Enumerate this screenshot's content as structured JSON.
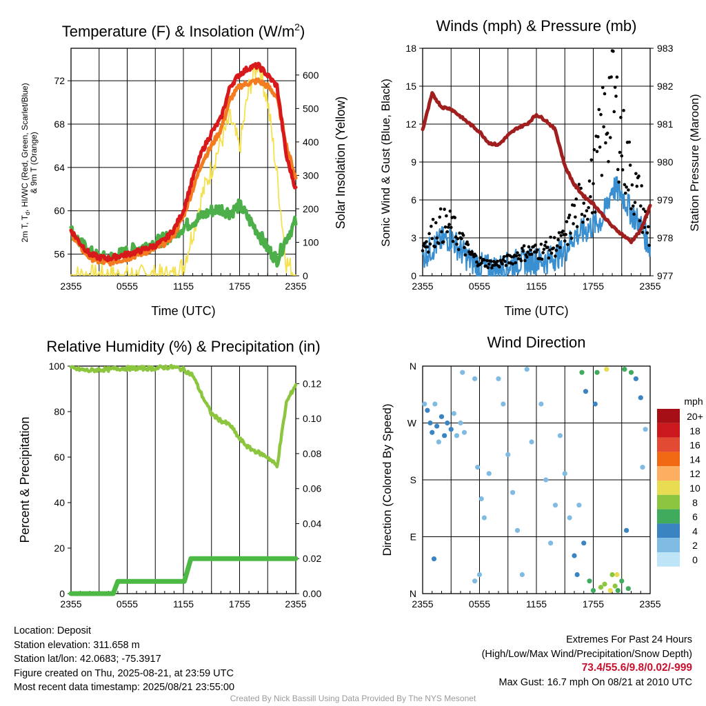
{
  "panels": {
    "temperature": {
      "title": "Temperature (F) & Insolation (W/m",
      "title_sup": "2",
      "title_end": ")",
      "ylabel_left_line1": "2m T, T",
      "ylabel_left_sub": "d",
      "ylabel_left_line1b": ", HI/WC (Red, Green, Scarlet/Blue)",
      "ylabel_left_line2": "& 9m T (Orange)",
      "ylabel_right": "Solar Insolation (Yellow)",
      "xlabel": "Time (UTC)"
    },
    "winds": {
      "title": "Winds (mph) & Pressure (mb)",
      "ylabel_left": "Sonic Wind & Gust (Blue, Black)",
      "ylabel_right": "Station Pressure (Maroon)",
      "xlabel": "Time (UTC)"
    },
    "humidity": {
      "title": "Relative Humidity (%) & Precipitation (in)",
      "ylabel_left": "Percent & Precipitation"
    },
    "direction": {
      "title": "Wind Direction",
      "ylabel_left": "Direction (Colored By Speed)",
      "legend_title": "mph",
      "legend_labels": [
        "20+",
        "18",
        "16",
        "14",
        "12",
        "10",
        "8",
        "6",
        "4",
        "2",
        "0"
      ],
      "legend_colors": [
        "#a50f15",
        "#cb181d",
        "#e34a33",
        "#f16913",
        "#fdae61",
        "#e8dd52",
        "#8cc63f",
        "#41ab5d",
        "#3a84c1",
        "#7fbbe3",
        "#bde4f7"
      ]
    }
  },
  "chart_data": [
    {
      "type": "line",
      "title": "Temperature (F) & Insolation (W/m2)",
      "xlabel": "Time (UTC)",
      "ylabel": "2m T, Td, HI/WC (Red, Green, Scarlet/Blue) & 9m T (Orange)",
      "y2label": "Solar Insolation (Yellow)",
      "x": [
        "2355",
        "0555",
        "1155",
        "1755",
        "2355"
      ],
      "x_hours": [
        0,
        6,
        12,
        18,
        24
      ],
      "ylim": [
        54,
        75
      ],
      "yticks": [
        56,
        60,
        64,
        68,
        72
      ],
      "y2lim": [
        0,
        680
      ],
      "y2ticks": [
        0,
        100,
        200,
        300,
        400,
        500,
        600
      ],
      "grid": true,
      "series": [
        {
          "name": "2m T",
          "color": "#d7191c",
          "axis": "left",
          "x": [
            0,
            1,
            2,
            3,
            4,
            5,
            6,
            7,
            8,
            9,
            10,
            11,
            12,
            13,
            14,
            15,
            16,
            17,
            18,
            19,
            20,
            21,
            22,
            23,
            24
          ],
          "values": [
            58.2,
            57.0,
            56.0,
            55.7,
            55.6,
            55.8,
            56.0,
            56.2,
            56.5,
            56.8,
            57.3,
            58.3,
            60.0,
            63.0,
            65.5,
            67.2,
            68.5,
            71.5,
            72.6,
            73.2,
            73.4,
            72.5,
            71.5,
            65.0,
            62.0
          ]
        },
        {
          "name": "9m T",
          "color": "#f47c20",
          "axis": "left",
          "x": [
            0,
            1,
            2,
            3,
            4,
            5,
            6,
            7,
            8,
            9,
            10,
            11,
            12,
            13,
            14,
            15,
            16,
            17,
            18,
            19,
            20,
            21,
            22,
            23,
            24
          ],
          "values": [
            58.0,
            56.6,
            55.7,
            55.3,
            55.2,
            55.4,
            55.6,
            55.9,
            56.2,
            56.5,
            57.0,
            57.8,
            59.5,
            62.0,
            64.5,
            66.0,
            67.5,
            70.3,
            71.5,
            71.8,
            72.0,
            71.5,
            70.5,
            66.0,
            63.0
          ]
        },
        {
          "name": "Td",
          "color": "#4daf4a",
          "axis": "left",
          "x": [
            0,
            1,
            2,
            3,
            4,
            5,
            6,
            7,
            8,
            9,
            10,
            11,
            12,
            13,
            14,
            15,
            16,
            17,
            18,
            19,
            20,
            21,
            22,
            23,
            24
          ],
          "values": [
            58.2,
            57.0,
            56.2,
            55.7,
            55.6,
            55.9,
            56.2,
            56.5,
            56.8,
            57.1,
            57.4,
            57.9,
            58.5,
            59.0,
            59.5,
            60.0,
            60.2,
            59.8,
            60.5,
            59.2,
            58.0,
            56.5,
            55.5,
            57.5,
            59.0
          ]
        },
        {
          "name": "Solar Insolation",
          "color": "#f5e04d",
          "axis": "right",
          "x": [
            0,
            4,
            8,
            9,
            10,
            11,
            12,
            13,
            14,
            15,
            16,
            17,
            18,
            19,
            20,
            21,
            22,
            23,
            24
          ],
          "values": [
            0,
            0,
            0,
            0,
            0,
            0,
            30,
            130,
            240,
            320,
            400,
            470,
            380,
            560,
            640,
            520,
            300,
            40,
            0
          ]
        }
      ]
    },
    {
      "type": "line",
      "title": "Winds (mph) & Pressure (mb)",
      "xlabel": "Time (UTC)",
      "ylabel": "Sonic Wind & Gust (Blue, Black)",
      "y2label": "Station Pressure (Maroon)",
      "x": [
        "2355",
        "0555",
        "1155",
        "1755",
        "2355"
      ],
      "x_hours": [
        0,
        6,
        12,
        18,
        24
      ],
      "ylim": [
        0,
        18
      ],
      "yticks": [
        0,
        3,
        6,
        9,
        12,
        15,
        18
      ],
      "y2lim": [
        977,
        983
      ],
      "y2ticks": [
        977,
        978,
        979,
        980,
        981,
        982,
        983
      ],
      "grid": true,
      "series": [
        {
          "name": "Sonic Wind",
          "color": "#3a8fd0",
          "axis": "left",
          "x": [
            0,
            1,
            2,
            3,
            4,
            5,
            6,
            7,
            8,
            9,
            10,
            11,
            12,
            13,
            14,
            15,
            16,
            17,
            18,
            19,
            20,
            21,
            22,
            23,
            24
          ],
          "values": [
            1.5,
            2.2,
            2.8,
            3.0,
            2.0,
            1.2,
            0.8,
            0.6,
            0.6,
            0.8,
            1.1,
            1.2,
            1.2,
            1.2,
            1.5,
            2.0,
            3.2,
            3.5,
            4.0,
            4.5,
            7.0,
            6.5,
            5.0,
            4.0,
            2.2
          ]
        },
        {
          "name": "Gust",
          "color": "#000000",
          "axis": "left",
          "x": [
            0,
            1,
            2,
            3,
            4,
            5,
            6,
            7,
            8,
            9,
            10,
            11,
            12,
            13,
            14,
            15,
            16,
            17,
            18,
            19,
            20,
            21,
            22,
            23,
            24
          ],
          "values": [
            2.5,
            3.5,
            4.2,
            4.0,
            3.0,
            1.8,
            1.2,
            1.0,
            1.0,
            1.3,
            1.7,
            2.0,
            2.0,
            2.2,
            2.5,
            3.0,
            5.0,
            6.5,
            7.5,
            12.0,
            15.5,
            11.0,
            8.0,
            6.0,
            3.0
          ]
        },
        {
          "name": "Station Pressure",
          "color": "#a01e1e",
          "axis": "right",
          "x": [
            0,
            1,
            2,
            3,
            4,
            5,
            6,
            7,
            8,
            9,
            10,
            11,
            12,
            13,
            14,
            15,
            16,
            17,
            18,
            19,
            20,
            21,
            22,
            23,
            24
          ],
          "values": [
            980.85,
            981.8,
            981.45,
            981.4,
            981.2,
            981.0,
            980.8,
            980.5,
            980.45,
            980.7,
            980.9,
            981.0,
            981.25,
            981.1,
            980.85,
            979.9,
            979.4,
            979.1,
            978.9,
            978.6,
            978.3,
            978.1,
            977.9,
            978.2,
            978.85
          ]
        }
      ]
    },
    {
      "type": "line",
      "title": "Relative Humidity (%) & Precipitation (in)",
      "ylabel": "Percent & Precipitation",
      "x": [
        "2355",
        "0555",
        "1155",
        "1755",
        "2355"
      ],
      "x_hours": [
        0,
        6,
        12,
        18,
        24
      ],
      "ylim": [
        0,
        100
      ],
      "yticks": [
        0,
        20,
        40,
        60,
        80,
        100
      ],
      "y2lim": [
        0,
        0.13
      ],
      "y2ticks": [
        0.0,
        0.02,
        0.04,
        0.06,
        0.08,
        0.1,
        0.12
      ],
      "grid": true,
      "series": [
        {
          "name": "Relative Humidity",
          "color": "#8cc63f",
          "axis": "left",
          "x": [
            0,
            1,
            2,
            3,
            4,
            5,
            6,
            7,
            8,
            9,
            10,
            11,
            12,
            13,
            14,
            15,
            16,
            17,
            18,
            19,
            20,
            21,
            22,
            23,
            24
          ],
          "values": [
            99,
            98.5,
            98,
            98.5,
            98.5,
            99,
            99,
            99,
            99,
            99,
            99.5,
            99.5,
            98.5,
            96,
            87,
            79,
            76,
            74,
            68,
            64,
            62,
            60,
            56,
            84,
            92
          ]
        },
        {
          "name": "Precipitation",
          "color": "#4cb944",
          "axis": "right",
          "x": [
            0,
            4.5,
            5.0,
            12.1,
            12.8,
            24
          ],
          "values": [
            0.0,
            0.0,
            0.007,
            0.007,
            0.02,
            0.02
          ]
        }
      ]
    },
    {
      "type": "scatter",
      "title": "Wind Direction",
      "ylabel": "Direction (Colored By Speed)",
      "x": [
        "2355",
        "0555",
        "1155",
        "1755",
        "2355"
      ],
      "x_hours": [
        0,
        6,
        12,
        18,
        24
      ],
      "yticks": [
        "N",
        "E",
        "S",
        "W",
        "N"
      ],
      "ylim": [
        0,
        360
      ],
      "legend": {
        "title": "mph",
        "position": "right"
      },
      "points": [
        {
          "t": 0.2,
          "dir": 300,
          "speed": 2
        },
        {
          "t": 0.5,
          "dir": 290,
          "speed": 3
        },
        {
          "t": 0.8,
          "dir": 270,
          "speed": 3
        },
        {
          "t": 1.0,
          "dir": 255,
          "speed": 4
        },
        {
          "t": 1.3,
          "dir": 300,
          "speed": 2
        },
        {
          "t": 1.5,
          "dir": 265,
          "speed": 3
        },
        {
          "t": 1.7,
          "dir": 240,
          "speed": 2
        },
        {
          "t": 2.0,
          "dir": 280,
          "speed": 3
        },
        {
          "t": 2.3,
          "dir": 250,
          "speed": 4
        },
        {
          "t": 2.6,
          "dir": 270,
          "speed": 3
        },
        {
          "t": 3.0,
          "dir": 260,
          "speed": 4
        },
        {
          "t": 3.3,
          "dir": 285,
          "speed": 2
        },
        {
          "t": 3.6,
          "dir": 250,
          "speed": 2
        },
        {
          "t": 4.0,
          "dir": 270,
          "speed": 1
        },
        {
          "t": 4.4,
          "dir": 255,
          "speed": 1
        },
        {
          "t": 1.2,
          "dir": 55,
          "speed": 4
        },
        {
          "t": 4.2,
          "dir": 350,
          "speed": 1
        },
        {
          "t": 5.5,
          "dir": 340,
          "speed": 1
        },
        {
          "t": 5.8,
          "dir": 200,
          "speed": 1
        },
        {
          "t": 6.2,
          "dir": 150,
          "speed": 1
        },
        {
          "t": 6.5,
          "dir": 120,
          "speed": 1
        },
        {
          "t": 5.5,
          "dir": 20,
          "speed": 1
        },
        {
          "t": 6.0,
          "dir": 30,
          "speed": 1
        },
        {
          "t": 7.0,
          "dir": 190,
          "speed": 2
        },
        {
          "t": 8.0,
          "dir": 340,
          "speed": 1
        },
        {
          "t": 8.5,
          "dir": 300,
          "speed": 1
        },
        {
          "t": 9.0,
          "dir": 220,
          "speed": 1
        },
        {
          "t": 9.5,
          "dir": 160,
          "speed": 1
        },
        {
          "t": 10.0,
          "dir": 100,
          "speed": 1
        },
        {
          "t": 10.5,
          "dir": 30,
          "speed": 1
        },
        {
          "t": 11.0,
          "dir": 355,
          "speed": 2
        },
        {
          "t": 11.5,
          "dir": 240,
          "speed": 1
        },
        {
          "t": 12.5,
          "dir": 300,
          "speed": 1
        },
        {
          "t": 13.0,
          "dir": 180,
          "speed": 1
        },
        {
          "t": 13.5,
          "dir": 80,
          "speed": 1
        },
        {
          "t": 14.0,
          "dir": 140,
          "speed": 1
        },
        {
          "t": 14.5,
          "dir": 250,
          "speed": 2
        },
        {
          "t": 15.0,
          "dir": 190,
          "speed": 2
        },
        {
          "t": 15.5,
          "dir": 120,
          "speed": 1
        },
        {
          "t": 16.0,
          "dir": 60,
          "speed": 3
        },
        {
          "t": 16.3,
          "dir": 30,
          "speed": 3
        },
        {
          "t": 16.8,
          "dir": 350,
          "speed": 5
        },
        {
          "t": 17.2,
          "dir": 320,
          "speed": 4
        },
        {
          "t": 17.6,
          "dir": 20,
          "speed": 5
        },
        {
          "t": 18.0,
          "dir": 5,
          "speed": 6
        },
        {
          "t": 18.4,
          "dir": 350,
          "speed": 6
        },
        {
          "t": 18.8,
          "dir": 10,
          "speed": 7
        },
        {
          "t": 19.2,
          "dir": 15,
          "speed": 7
        },
        {
          "t": 19.4,
          "dir": 355,
          "speed": 10
        },
        {
          "t": 19.8,
          "dir": 5,
          "speed": 9
        },
        {
          "t": 20.0,
          "dir": 30,
          "speed": 7
        },
        {
          "t": 20.3,
          "dir": 12,
          "speed": 8
        },
        {
          "t": 20.6,
          "dir": 5,
          "speed": 6
        },
        {
          "t": 21.0,
          "dir": 20,
          "speed": 5
        },
        {
          "t": 21.3,
          "dir": 355,
          "speed": 6
        },
        {
          "t": 21.7,
          "dir": 8,
          "speed": 6
        },
        {
          "t": 22.0,
          "dir": 350,
          "speed": 5
        },
        {
          "t": 22.5,
          "dir": 340,
          "speed": 4
        },
        {
          "t": 23.0,
          "dir": 310,
          "speed": 3
        },
        {
          "t": 23.5,
          "dir": 260,
          "speed": 2
        },
        {
          "t": 17.0,
          "dir": 80,
          "speed": 3
        },
        {
          "t": 16.5,
          "dir": 140,
          "speed": 2
        },
        {
          "t": 18.2,
          "dir": 300,
          "speed": 4
        },
        {
          "t": 21.5,
          "dir": 100,
          "speed": 4
        },
        {
          "t": 23.2,
          "dir": 200,
          "speed": 2
        },
        {
          "t": 20.5,
          "dir": 30,
          "speed": 10
        }
      ]
    }
  ],
  "info": {
    "location": "Location: Deposit",
    "elevation": "Station elevation: 311.658 m",
    "latlon": "Station lat/lon: 42.0683; -75.3917",
    "created": "Figure created on Thu, 2025-08-21, at 23:59 UTC",
    "recent": "Most recent data timestamp: 2025/08/21 23:55:00",
    "extremes_title": "Extremes For Past 24 Hours",
    "extremes_sub": "(High/Low/Max Wind/Precipitation/Snow Depth)",
    "extremes_values": "73.4/55.6/9.8/0.02/-999",
    "max_gust": "Max Gust: 16.7 mph On 08/21 at 2010 UTC",
    "credit": "Created By Nick Bassill Using Data Provided By The NYS Mesonet"
  }
}
